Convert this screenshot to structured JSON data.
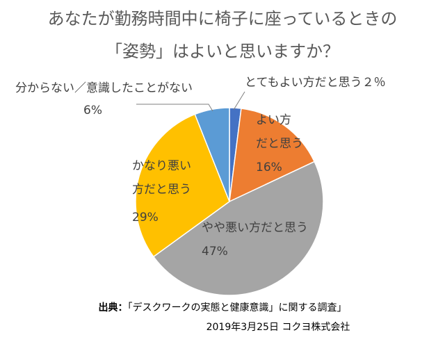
{
  "title_line1": "あなたが勤務時間中に椅子に座っているときの",
  "title_line2": "「姿勢」はよいと思いますか？",
  "chart_data": {
    "type": "pie",
    "title": "あなたが勤務時間中に椅子に座っているときの「姿勢」はよいと思いますか？",
    "categories": [
      "とてもよい方だと思う",
      "よい方だと思う",
      "やや悪い方だと思う",
      "かなり悪い方だと思う",
      "分からない／意識したことがない"
    ],
    "values": [
      2,
      16,
      47,
      29,
      6
    ],
    "unit": "%",
    "colors": [
      "#4472C4",
      "#ED7D31",
      "#A5A5A5",
      "#FFC000",
      "#5B9BD5"
    ],
    "data_labels": [
      [
        "とてもよい方だと思う２％"
      ],
      [
        "よい方",
        "だと思う",
        "16%"
      ],
      [
        "やや悪い方だと思う",
        "47%"
      ],
      [
        "かなり悪い",
        "方だと思う",
        "29%"
      ],
      [
        "分からない／意識したことがない",
        "6%"
      ]
    ]
  },
  "source": {
    "label": "出典：",
    "text": "「デスクワークの実態と健康意識」に関する調査」",
    "date_company": "2019年3月25日  コクヨ株式会社"
  }
}
